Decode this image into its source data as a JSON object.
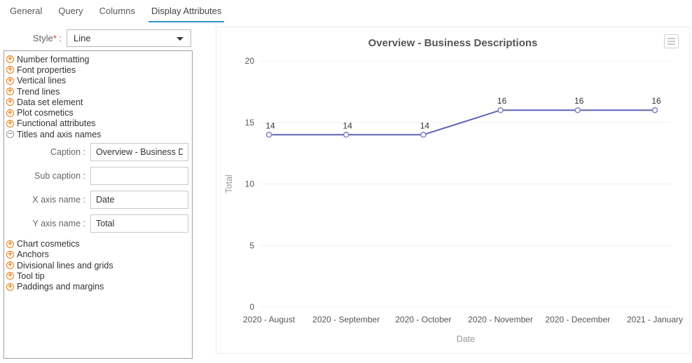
{
  "tabs": [
    {
      "label": "General",
      "active": false
    },
    {
      "label": "Query",
      "active": false
    },
    {
      "label": "Columns",
      "active": false
    },
    {
      "label": "Display Attributes",
      "active": true
    }
  ],
  "style_field": {
    "label": "Style",
    "required_mark": "*",
    "colon": ":",
    "value": "Line",
    "dropdown_icon": "caret-down-icon"
  },
  "tree": {
    "items_top": [
      {
        "label": "Number formatting",
        "state": "collapsed"
      },
      {
        "label": "Font properties",
        "state": "collapsed"
      },
      {
        "label": "Vertical lines",
        "state": "collapsed"
      },
      {
        "label": "Trend lines",
        "state": "collapsed"
      },
      {
        "label": "Data set element",
        "state": "collapsed"
      },
      {
        "label": "Plot cosmetics",
        "state": "collapsed"
      },
      {
        "label": "Functional attributes",
        "state": "collapsed"
      },
      {
        "label": "Titles and axis names",
        "state": "expanded"
      }
    ],
    "form_fields": [
      {
        "label": "Caption :",
        "value": "Overview - Business De"
      },
      {
        "label": "Sub caption :",
        "value": ""
      },
      {
        "label": "X axis name :",
        "value": "Date"
      },
      {
        "label": "Y axis name :",
        "value": "Total"
      }
    ],
    "items_bottom": [
      {
        "label": "Chart cosmetics",
        "state": "collapsed"
      },
      {
        "label": "Anchors",
        "state": "collapsed"
      },
      {
        "label": "Divisional lines and grids",
        "state": "collapsed"
      },
      {
        "label": "Tool tip",
        "state": "collapsed"
      },
      {
        "label": "Paddings and margins",
        "state": "collapsed"
      }
    ]
  },
  "chart_panel": {
    "menu_icon": "hamburger-menu-icon"
  },
  "chart_data": {
    "type": "line",
    "title": "Overview - Business Descriptions",
    "xlabel": "Date",
    "ylabel": "Total",
    "categories": [
      "2020 - August",
      "2020 - September",
      "2020 - October",
      "2020 - November",
      "2020 - December",
      "2021 - January"
    ],
    "values": [
      14,
      14,
      14,
      16,
      16,
      16
    ],
    "ylim": [
      0,
      20
    ],
    "yticks": [
      0,
      5,
      10,
      15,
      20
    ],
    "grid": true,
    "legend": "none",
    "line_color": "#5d62b5",
    "marker": "open-circle"
  },
  "colors": {
    "accent_orange": "#ee7c0d",
    "tab_active_blue": "#2e93c9",
    "line_series": "#5d62b5",
    "marker_stroke": "#7d82c6",
    "gridline": "#f0f0f0",
    "title_text": "#555555",
    "axis_tick_text": "#555555",
    "axis_name_text": "#999999",
    "data_label_text": "#333333"
  }
}
